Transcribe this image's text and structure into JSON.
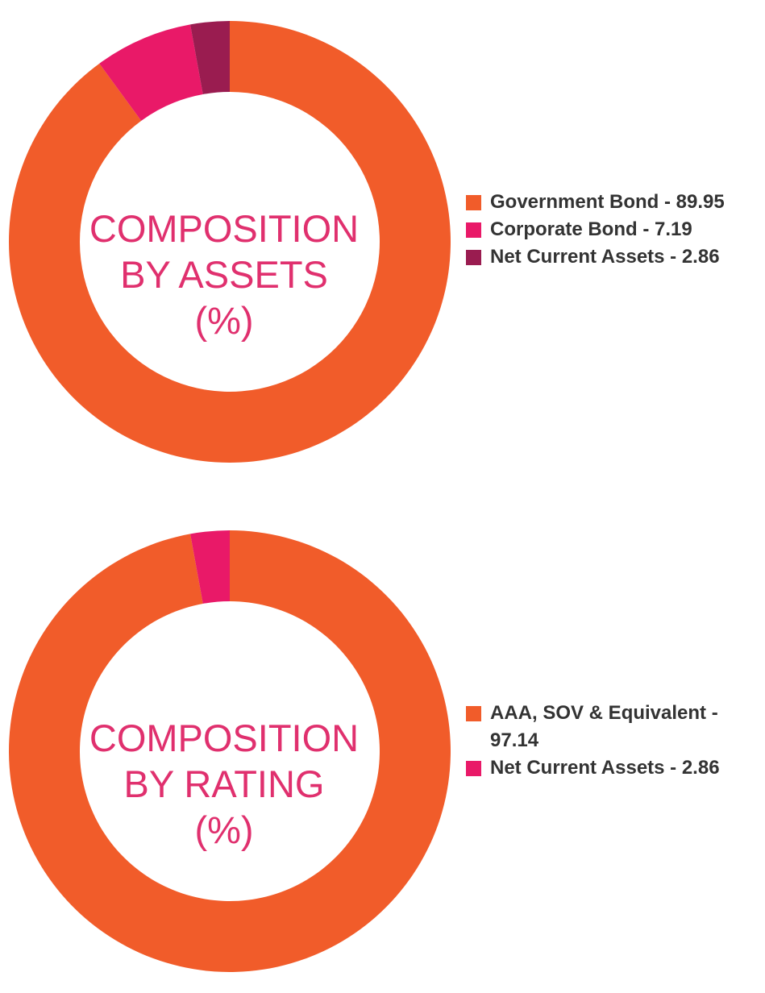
{
  "colors": {
    "orange": "#f15c2a",
    "pink": "#e91968",
    "maroon": "#9a1c50",
    "center_text": "#e0306e"
  },
  "chart_data": [
    {
      "type": "pie",
      "donut": true,
      "center_label": [
        "COMPOSITION",
        "BY ASSETS",
        "(%)"
      ],
      "series": [
        {
          "label": "Government Bond - 89.95",
          "value": 89.95,
          "color": "#f15c2a"
        },
        {
          "label": "Corporate Bond - 7.19",
          "value": 7.19,
          "color": "#e91968"
        },
        {
          "label": "Net Current Assets - 2.86",
          "value": 2.86,
          "color": "#9a1c50"
        }
      ],
      "legend_position": "right"
    },
    {
      "type": "pie",
      "donut": true,
      "center_label": [
        "COMPOSITION",
        "BY RATING",
        "(%)"
      ],
      "series": [
        {
          "label": "AAA, SOV & Equivalent - 97.14",
          "label_lines": [
            "AAA, SOV & Equivalent -",
            "97.14"
          ],
          "value": 97.14,
          "color": "#f15c2a"
        },
        {
          "label": "Net Current Assets - 2.86",
          "value": 2.86,
          "color": "#e91968"
        }
      ],
      "legend_position": "right"
    }
  ]
}
